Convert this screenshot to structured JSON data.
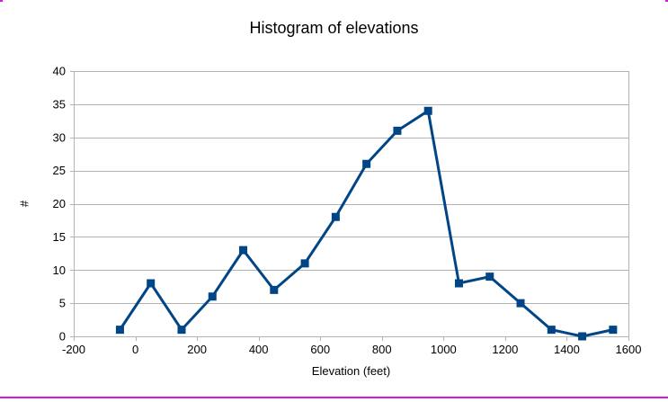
{
  "page": {
    "border_color": "#d916d9",
    "background": "#ffffff"
  },
  "chart_data": {
    "type": "line",
    "title": "Histogram of elevations",
    "xlabel": "Elevation (feet)",
    "ylabel": "#",
    "x": [
      -50,
      50,
      150,
      250,
      350,
      450,
      550,
      650,
      750,
      850,
      950,
      1050,
      1150,
      1250,
      1350,
      1450,
      1550
    ],
    "values": [
      1,
      8,
      1,
      6,
      13,
      7,
      11,
      18,
      26,
      31,
      34,
      8,
      9,
      5,
      1,
      0,
      1
    ],
    "xlim": [
      -200,
      1600
    ],
    "ylim": [
      0,
      40
    ],
    "x_ticks": [
      -200,
      0,
      200,
      400,
      600,
      800,
      1000,
      1200,
      1400,
      1600
    ],
    "y_ticks": [
      0,
      5,
      10,
      15,
      20,
      25,
      30,
      35,
      40
    ],
    "series_color": "#004586",
    "grid_color": "#b3b3b3",
    "text_color": "#000000",
    "marker": "square",
    "marker_size": 9,
    "line_width": 3,
    "grid": "horizontal",
    "legend": "none"
  }
}
